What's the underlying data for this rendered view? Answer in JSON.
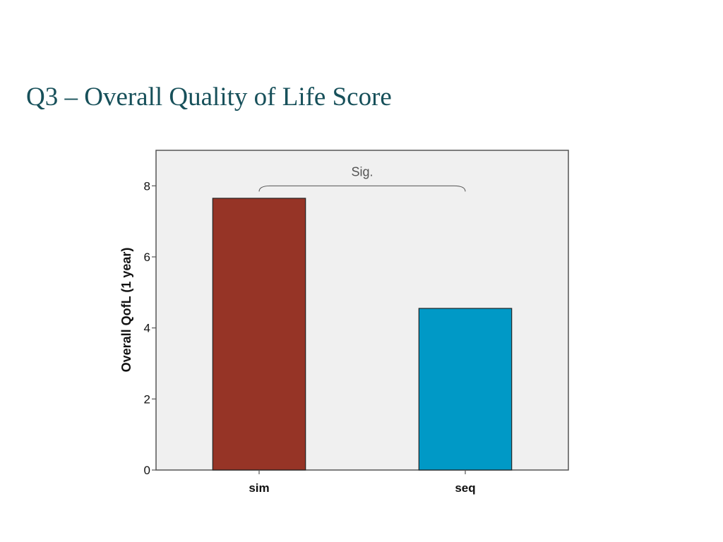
{
  "slide": {
    "title": "Q3 – Overall Quality of Life Score"
  },
  "chart_data": {
    "type": "bar",
    "categories": [
      "sim",
      "seq"
    ],
    "values": [
      7.65,
      4.55
    ],
    "colors": [
      "#963426",
      "#0099c6"
    ],
    "xlabel": "",
    "ylabel": "Overall QofL (1 year)",
    "ylim": [
      0,
      9
    ],
    "yticks": [
      0,
      2,
      4,
      6,
      8
    ],
    "grid": false,
    "legend": "none",
    "plot_background": "#f0f0f0",
    "annotations": [
      {
        "text": "Sig.",
        "type": "bracket",
        "between": [
          "sim",
          "seq"
        ],
        "value": 8.0
      }
    ]
  }
}
